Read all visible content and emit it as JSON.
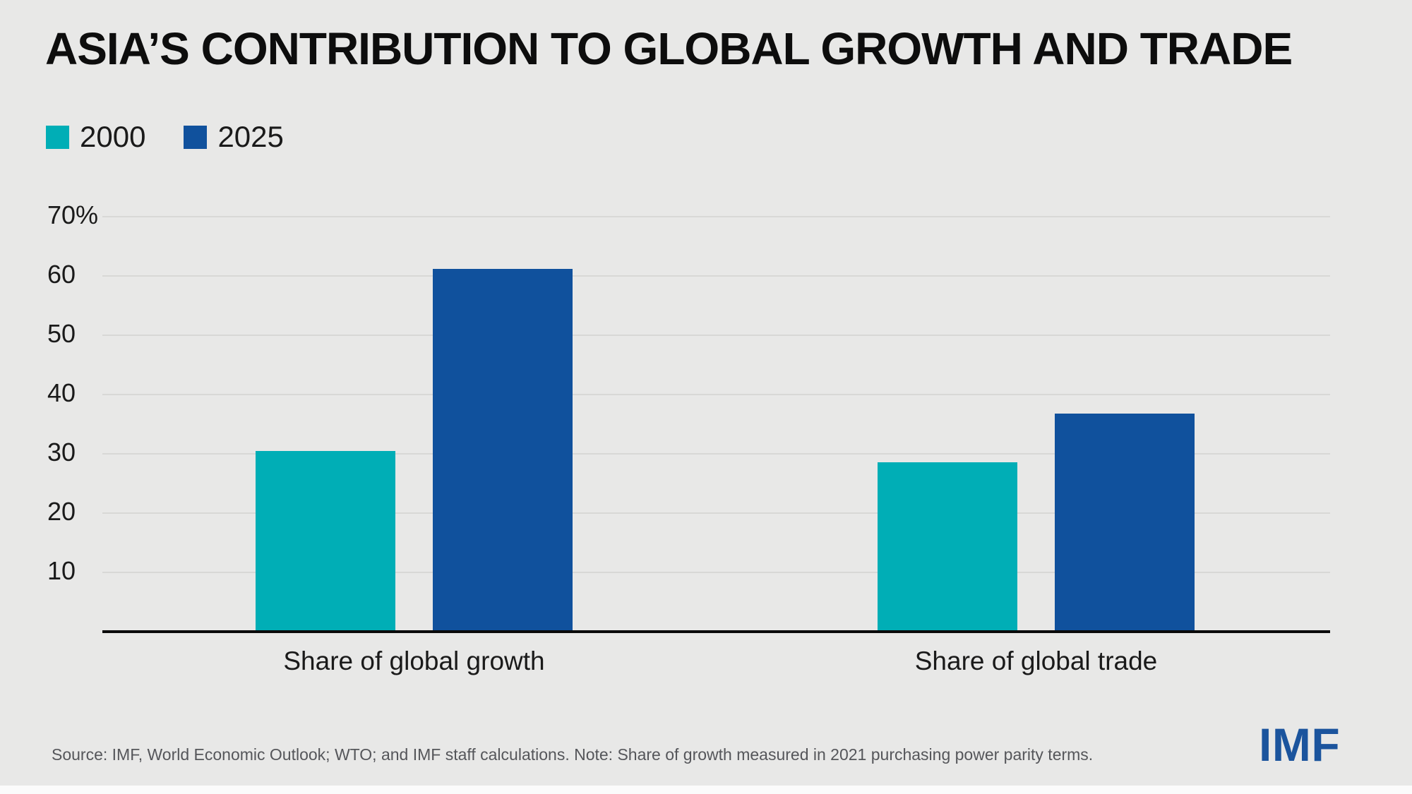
{
  "title": "ASIA’S CONTRIBUTION TO GLOBAL GROWTH AND TRADE",
  "legend": [
    {
      "label": "2000",
      "color": "#00AEB6"
    },
    {
      "label": "2025",
      "color": "#10519D"
    }
  ],
  "chart_data": {
    "type": "bar",
    "categories": [
      "Share of global growth",
      "Share of global trade"
    ],
    "series": [
      {
        "name": "2000",
        "color": "#00AEB6",
        "values": [
          30.5,
          28.6
        ]
      },
      {
        "name": "2025",
        "color": "#10519D",
        "values": [
          61.2,
          36.8
        ]
      }
    ],
    "title": "ASIA’S CONTRIBUTION TO GLOBAL GROWTH AND TRADE",
    "xlabel": "",
    "ylabel": "",
    "ylim": [
      0,
      70
    ],
    "yticks": [
      70,
      60,
      50,
      40,
      30,
      20,
      10
    ],
    "ytick_labels": [
      "70%",
      "60",
      "50",
      "40",
      "30",
      "20",
      "10"
    ],
    "grid": true,
    "legend_position": "top-left"
  },
  "footer": {
    "source": "Source: IMF, World Economic Outlook; WTO; and IMF staff calculations. Note: Share of growth measured in 2021 purchasing power parity terms.",
    "logo": "IMF"
  },
  "colors": {
    "background": "#e8e8e7",
    "gridline": "#d8d8d6",
    "axis": "#0a0a0a",
    "text": "#1a1a1a",
    "source_text": "#55565a",
    "imf_logo_blue": "#1b549d"
  }
}
